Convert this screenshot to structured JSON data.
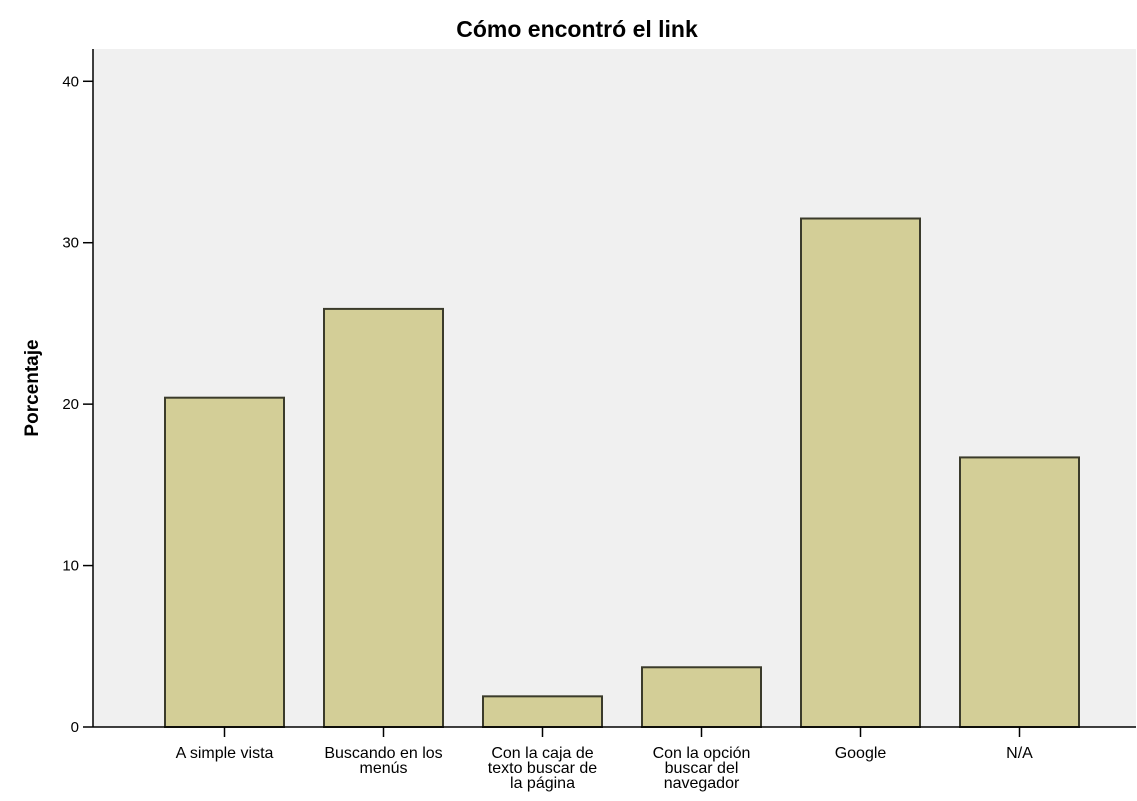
{
  "chart_data": {
    "type": "bar",
    "title": "Cómo encontró el link",
    "xlabel": "",
    "ylabel": "Porcentaje",
    "ylim": [
      0,
      42
    ],
    "yticks": [
      0,
      10,
      20,
      30,
      40
    ],
    "grid": false,
    "categories": [
      "A simple vista",
      "Buscando en los menús",
      "Con la caja de texto buscar de la página",
      "Con la opción buscar del navegador",
      "Google",
      "N/A"
    ],
    "category_lines": [
      [
        "A simple vista"
      ],
      [
        "Buscando en los",
        "menús"
      ],
      [
        "Con la caja de",
        "texto buscar de",
        "la página"
      ],
      [
        "Con la opción",
        "buscar del",
        "navegador"
      ],
      [
        "Google"
      ],
      [
        "N/A"
      ]
    ],
    "values": [
      20.4,
      25.9,
      1.9,
      3.7,
      31.5,
      16.7
    ],
    "colors": {
      "bar_fill": "#d3ce97",
      "bar_stroke": "#3b3b2b",
      "plot_background": "#f0f0f0",
      "axis": "#000000"
    }
  }
}
